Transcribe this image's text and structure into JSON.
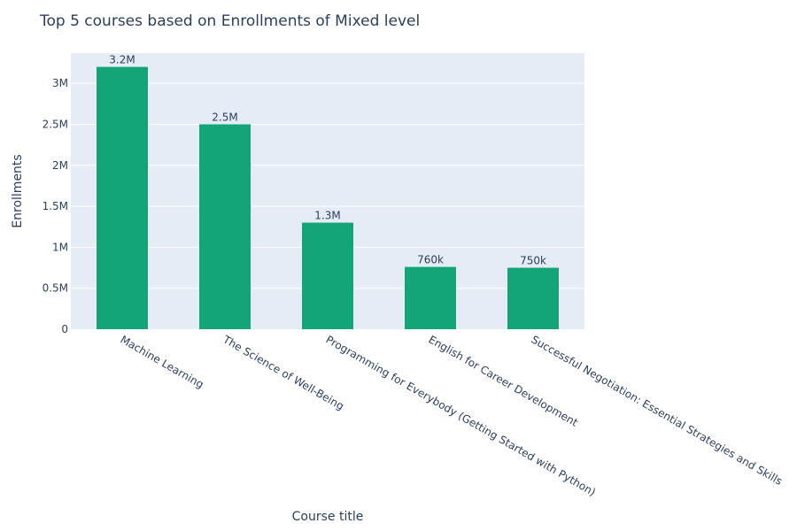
{
  "chart_data": {
    "type": "bar",
    "title": "Top 5 courses based on Enrollments of Mixed level",
    "xlabel": "Course title",
    "ylabel": "Enrollments",
    "categories": [
      "Machine Learning",
      "The Science of Well-Being",
      "Programming for Everybody (Getting Started with Python)",
      "English for Career Development",
      "Successful Negotiation: Essential Strategies and Skills"
    ],
    "values": [
      3200000,
      2500000,
      1300000,
      760000,
      750000
    ],
    "data_labels": [
      "3.2M",
      "2.5M",
      "1.3M",
      "760k",
      "750k"
    ],
    "y_ticks": [
      {
        "value": 0,
        "label": "0"
      },
      {
        "value": 500000,
        "label": "0.5M"
      },
      {
        "value": 1000000,
        "label": "1M"
      },
      {
        "value": 1500000,
        "label": "1.5M"
      },
      {
        "value": 2000000,
        "label": "2M"
      },
      {
        "value": 2500000,
        "label": "2.5M"
      },
      {
        "value": 3000000,
        "label": "3M"
      }
    ],
    "ylim": [
      0,
      3368421
    ],
    "grid": true,
    "colors": {
      "bar": "#13a577",
      "plot_bg": "#e5ecf6",
      "grid": "#ffffff",
      "text": "#2a3f5f"
    }
  }
}
